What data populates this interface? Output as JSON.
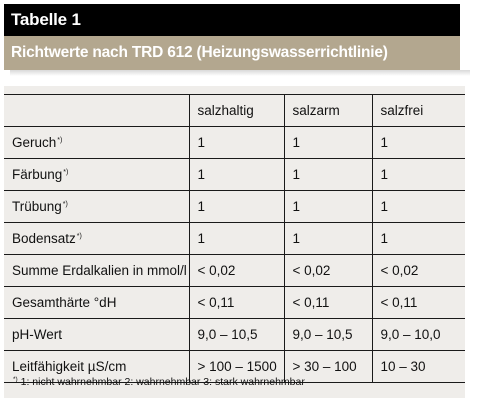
{
  "header": {
    "title": "Tabelle 1",
    "subtitle": "Richtwerte nach TRD 612 (Heizungswasserrichtlinie)"
  },
  "table": {
    "columns": [
      "",
      "salzhaltig",
      "salzarm",
      "salzfrei"
    ],
    "rows": [
      {
        "label": "Geruch",
        "note": "*)",
        "values": [
          "1",
          "1",
          "1"
        ]
      },
      {
        "label": "Färbung",
        "note": "*)",
        "values": [
          "1",
          "1",
          "1"
        ]
      },
      {
        "label": "Trübung",
        "note": "*)",
        "values": [
          "1",
          "1",
          "1"
        ]
      },
      {
        "label": "Bodensatz",
        "note": "*)",
        "values": [
          "1",
          "1",
          "1"
        ]
      },
      {
        "label": "Summe Erdalkalien in mmol/l",
        "note": "",
        "values": [
          "< 0,02",
          "< 0,02",
          "< 0,02"
        ]
      },
      {
        "label": "Gesamthärte °dH",
        "note": "",
        "values": [
          "< 0,11",
          "< 0,11",
          "< 0,11"
        ]
      },
      {
        "label": "pH-Wert",
        "note": "",
        "values": [
          "9,0 – 10,5",
          "9,0 – 10,5",
          "9,0 – 10,0"
        ]
      },
      {
        "label": "Leitfähigkeit µS/cm",
        "note": "",
        "values": [
          "> 100 – 1500",
          "> 30 – 100",
          "10 – 30"
        ]
      }
    ]
  },
  "footnote": {
    "marker": "*)",
    "text": " 1: nicht wahrnehmbar 2: wahrnehmbar 3: stark wahrnehmbar"
  },
  "colors": {
    "title_bg": "#000000",
    "subtitle_bg": "#b3a78f",
    "table_bg": "#efedea"
  }
}
